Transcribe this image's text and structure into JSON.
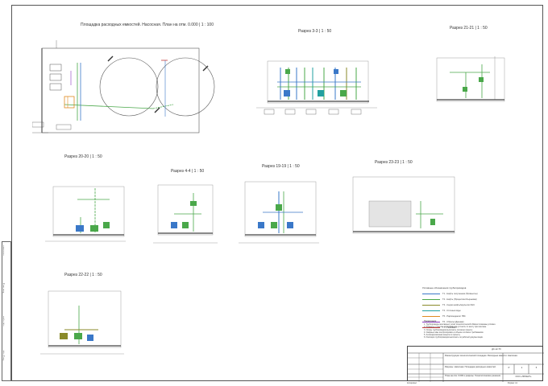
{
  "views": {
    "plan": "Площадка расходных емкостей. Насосная. План на отм. 0.000 | 1 : 100",
    "s33": "Разрез 3-3 | 1 : 50",
    "s2121": "Разрез 21-21 | 1 : 50",
    "s2020": "Разрез 20-20 | 1 : 50",
    "s44": "Разрез 4-4 | 1 : 50",
    "s1919": "Разрез 19-19 | 1 : 50",
    "s2323": "Разрез 23-23 | 1 : 50",
    "s2222": "Разрез 22-22 | 1 : 50"
  },
  "legend": {
    "title": "Условные обозначения трубопроводов",
    "items": [
      {
        "code": "T1",
        "label": "T1 - Нефть полученная (Промыслы)",
        "color": "#3a78c8"
      },
      {
        "code": "T2",
        "label": "T2 - Нефть (Процессинг/Сырьевая)",
        "color": "#4aa84a"
      },
      {
        "code": "T3",
        "label": "T3 - Сырая нефть/эмульсия ОНС",
        "color": "#8a8a2a"
      },
      {
        "code": "T4",
        "label": "T4 - Сточные воды",
        "color": "#22a0a0"
      },
      {
        "code": "T5",
        "label": "T5 - Пар/конденсат ГВС",
        "color": "#e08a20"
      },
      {
        "code": "T6",
        "label": "T6 - Сбросы (Дренаж)",
        "color": "#8a3ac0"
      },
      {
        "code": "T7",
        "label": "T7 - Газ/Факел",
        "color": "#c03a3a"
      }
    ]
  },
  "notes": {
    "title": "Примечания:",
    "lines": [
      "1. Трубопроводы монтажных узлов технологической обвязки показаны условно.",
      "2. Размеры и отметки трубопроводов уточнить по месту при монтаже.",
      "3. Опоры трубопроводов выполнить согласно проекту.",
      "4. Сварные швы контролировать в объеме согласно требованиям.",
      "5. Антикоррозионная защита по проекту.",
      "6. Изоляция трубопроводов выполнить по рабочей документации."
    ]
  },
  "stamp": {
    "code": "ДС-12-ТХ",
    "description": "Реконструкция технологической площадки. Расходные емкости. Насосная.",
    "sheet_title": "Разрезы. Насосная. Площадка расходных емкостей.",
    "drawing_title": "План на отм. 0.000 и разрезы. Технологические решения.",
    "stage": "Р",
    "sheet": "2",
    "sheets": "5",
    "org": "ООО «ПРОЕКТ»",
    "format": "Формат А1",
    "copied": "Копировал"
  },
  "side": {
    "a": "Согласовано",
    "b": "Инв. № подл.",
    "c": "Подп. и дата",
    "d": "Взам. инв. №"
  }
}
